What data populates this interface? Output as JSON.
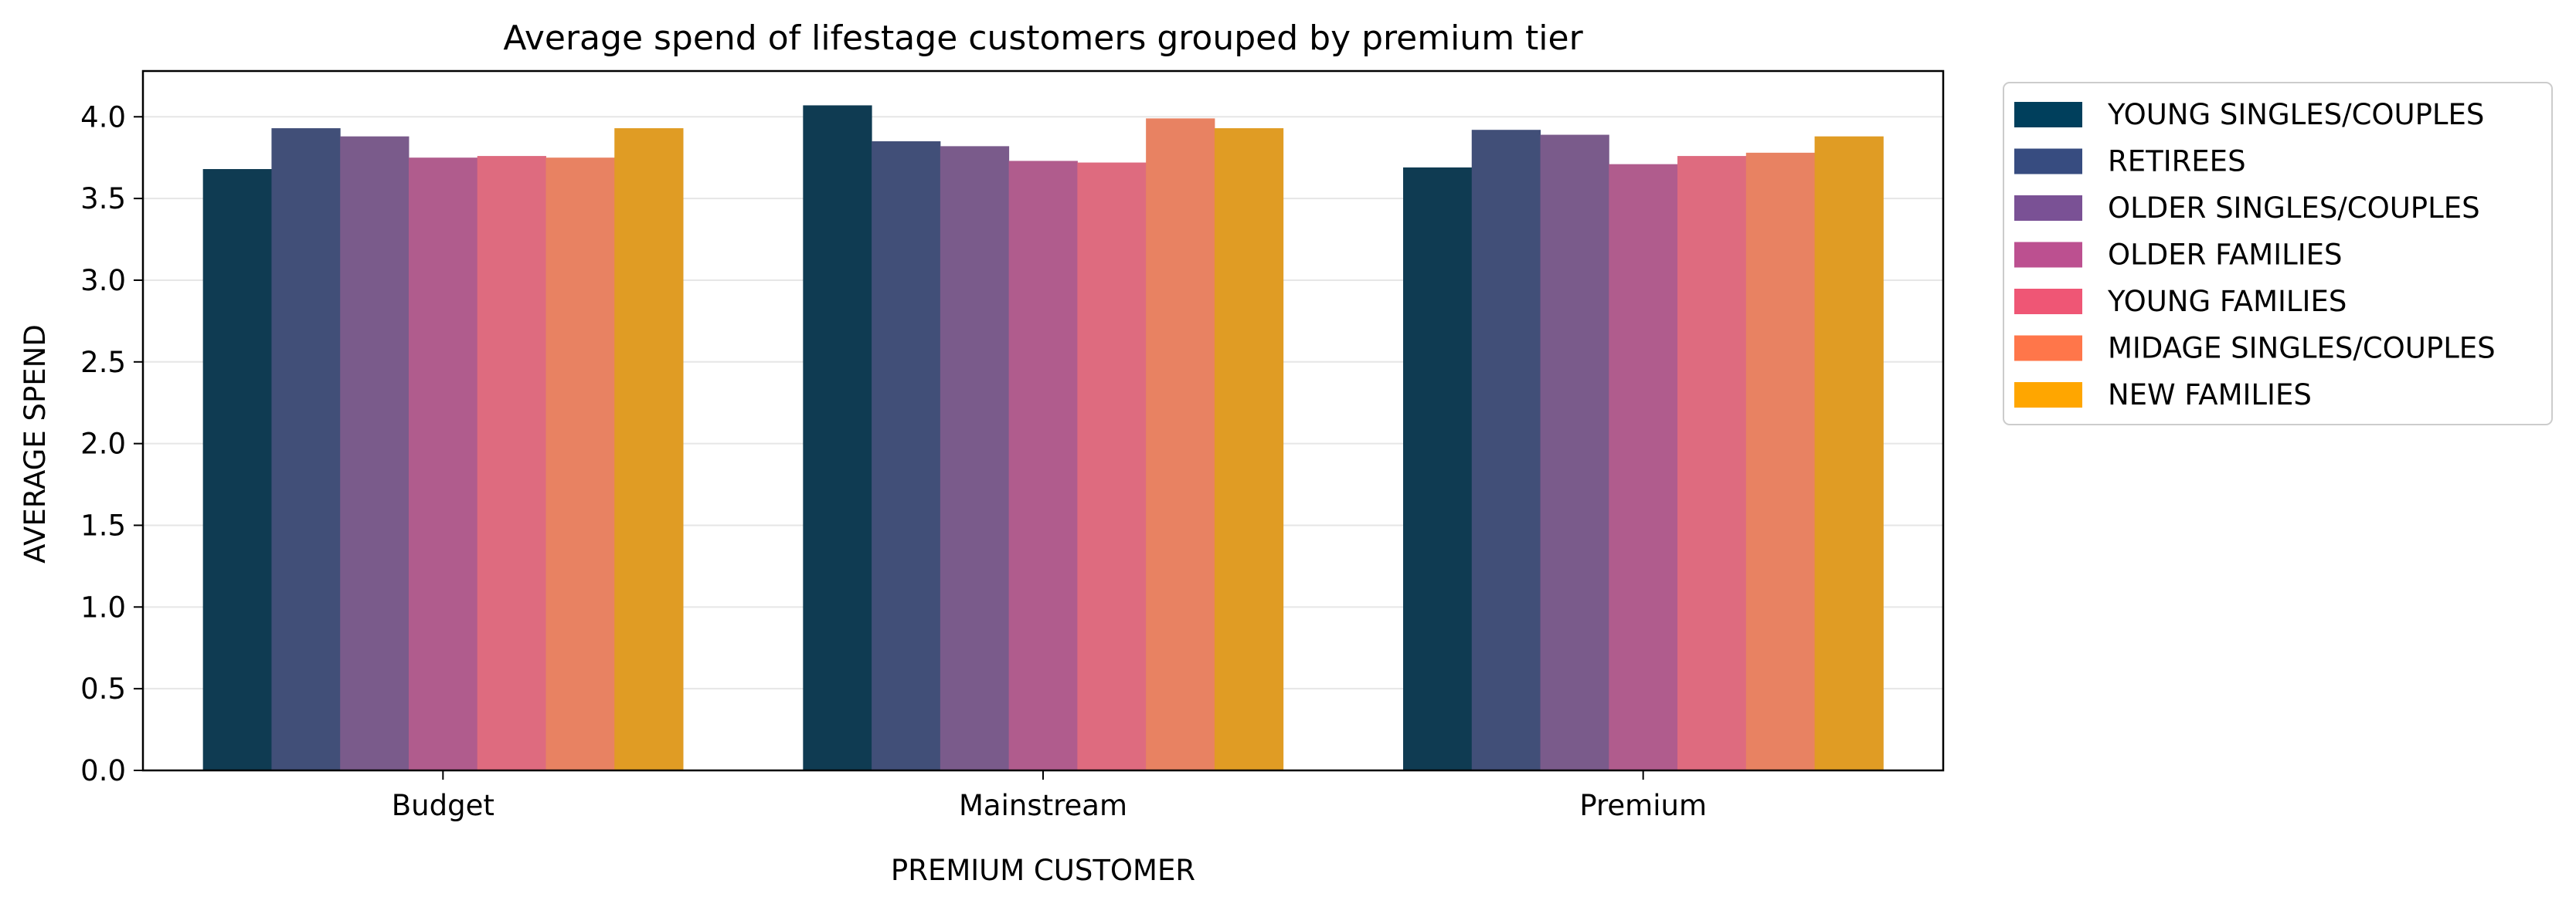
{
  "chart_data": {
    "type": "bar",
    "title": "Average spend of lifestage customers grouped by premium tier",
    "xlabel": "PREMIUM CUSTOMER",
    "ylabel": "AVERAGE SPEND",
    "categories": [
      "Budget",
      "Mainstream",
      "Premium"
    ],
    "ylim": [
      0,
      4.28
    ],
    "yticks": [
      "0.0",
      "0.5",
      "1.0",
      "1.5",
      "2.0",
      "2.5",
      "3.0",
      "3.5",
      "4.0"
    ],
    "grid": "horizontal",
    "legend_position": "outside right",
    "series": [
      {
        "name": "YOUNG SINGLES/COUPLES",
        "color": "#0f3b52",
        "values": [
          3.68,
          4.07,
          3.69
        ]
      },
      {
        "name": "RETIREES",
        "color": "#414f78",
        "values": [
          3.93,
          3.85,
          3.92
        ]
      },
      {
        "name": "OLDER SINGLES/COUPLES",
        "color": "#7a5b8b",
        "values": [
          3.88,
          3.82,
          3.89
        ]
      },
      {
        "name": "OLDER FAMILIES",
        "color": "#b05c8d",
        "values": [
          3.75,
          3.73,
          3.71
        ]
      },
      {
        "name": "YOUNG FAMILIES",
        "color": "#de6b7f",
        "values": [
          3.76,
          3.72,
          3.76
        ]
      },
      {
        "name": "MIDAGE SINGLES/COUPLES",
        "color": "#e88262",
        "values": [
          3.75,
          3.99,
          3.78
        ]
      },
      {
        "name": "NEW FAMILIES",
        "color": "#e09c24",
        "values": [
          3.93,
          3.93,
          3.88
        ]
      }
    ],
    "legend_swatch_colors": [
      "#003f5c",
      "#374c80",
      "#7a5195",
      "#bc5090",
      "#ef5675",
      "#ff764a",
      "#ffa600"
    ]
  }
}
